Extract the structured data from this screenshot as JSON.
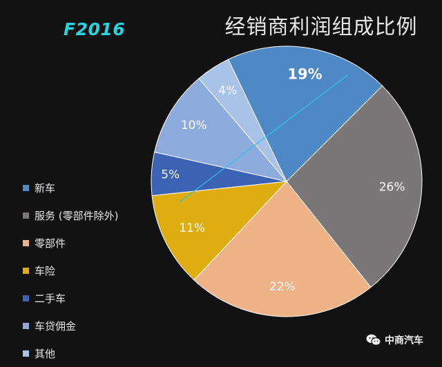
{
  "header": {
    "fiscal_year": "F2016",
    "title": "经销商利润组成比例"
  },
  "watermark": {
    "name": "中商汽车",
    "icon": "wechat-icon"
  },
  "chart_data": {
    "type": "pie",
    "title": "经销商利润组成比例",
    "legend_position": "left",
    "start_angle_deg": 315,
    "direction": "clockwise",
    "slices": [
      {
        "label": "服务 (零部件除外)",
        "value": 26,
        "display": "26%",
        "color": "#7b7778"
      },
      {
        "label": "零部件",
        "value": 22,
        "display": "22%",
        "color": "#efb287"
      },
      {
        "label": "车险",
        "value": 11,
        "display": "11%",
        "color": "#e0ad10"
      },
      {
        "label": "二手车",
        "value": 5,
        "display": "5%",
        "color": "#3c63b3"
      },
      {
        "label": "车贷佣金",
        "value": 10,
        "display": "10%",
        "color": "#8eabdd"
      },
      {
        "label": "其他",
        "value": 4,
        "display": "4%",
        "color": "#a8c2e8"
      },
      {
        "label": "新车",
        "value": 19,
        "display": "19%",
        "color": "#4e88c5"
      }
    ],
    "legend": [
      {
        "label": "新车",
        "color": "#4e88c5"
      },
      {
        "label": "服务 (零部件除外)",
        "color": "#7b7778"
      },
      {
        "label": "零部件",
        "color": "#efb287"
      },
      {
        "label": "车险",
        "color": "#e0ad10"
      },
      {
        "label": "二手车",
        "color": "#3c63b3"
      },
      {
        "label": "车贷佣金",
        "color": "#8eabdd"
      },
      {
        "label": "其他",
        "color": "#a8c2e8"
      }
    ],
    "annotation_line_color": "#2ac6e6"
  }
}
